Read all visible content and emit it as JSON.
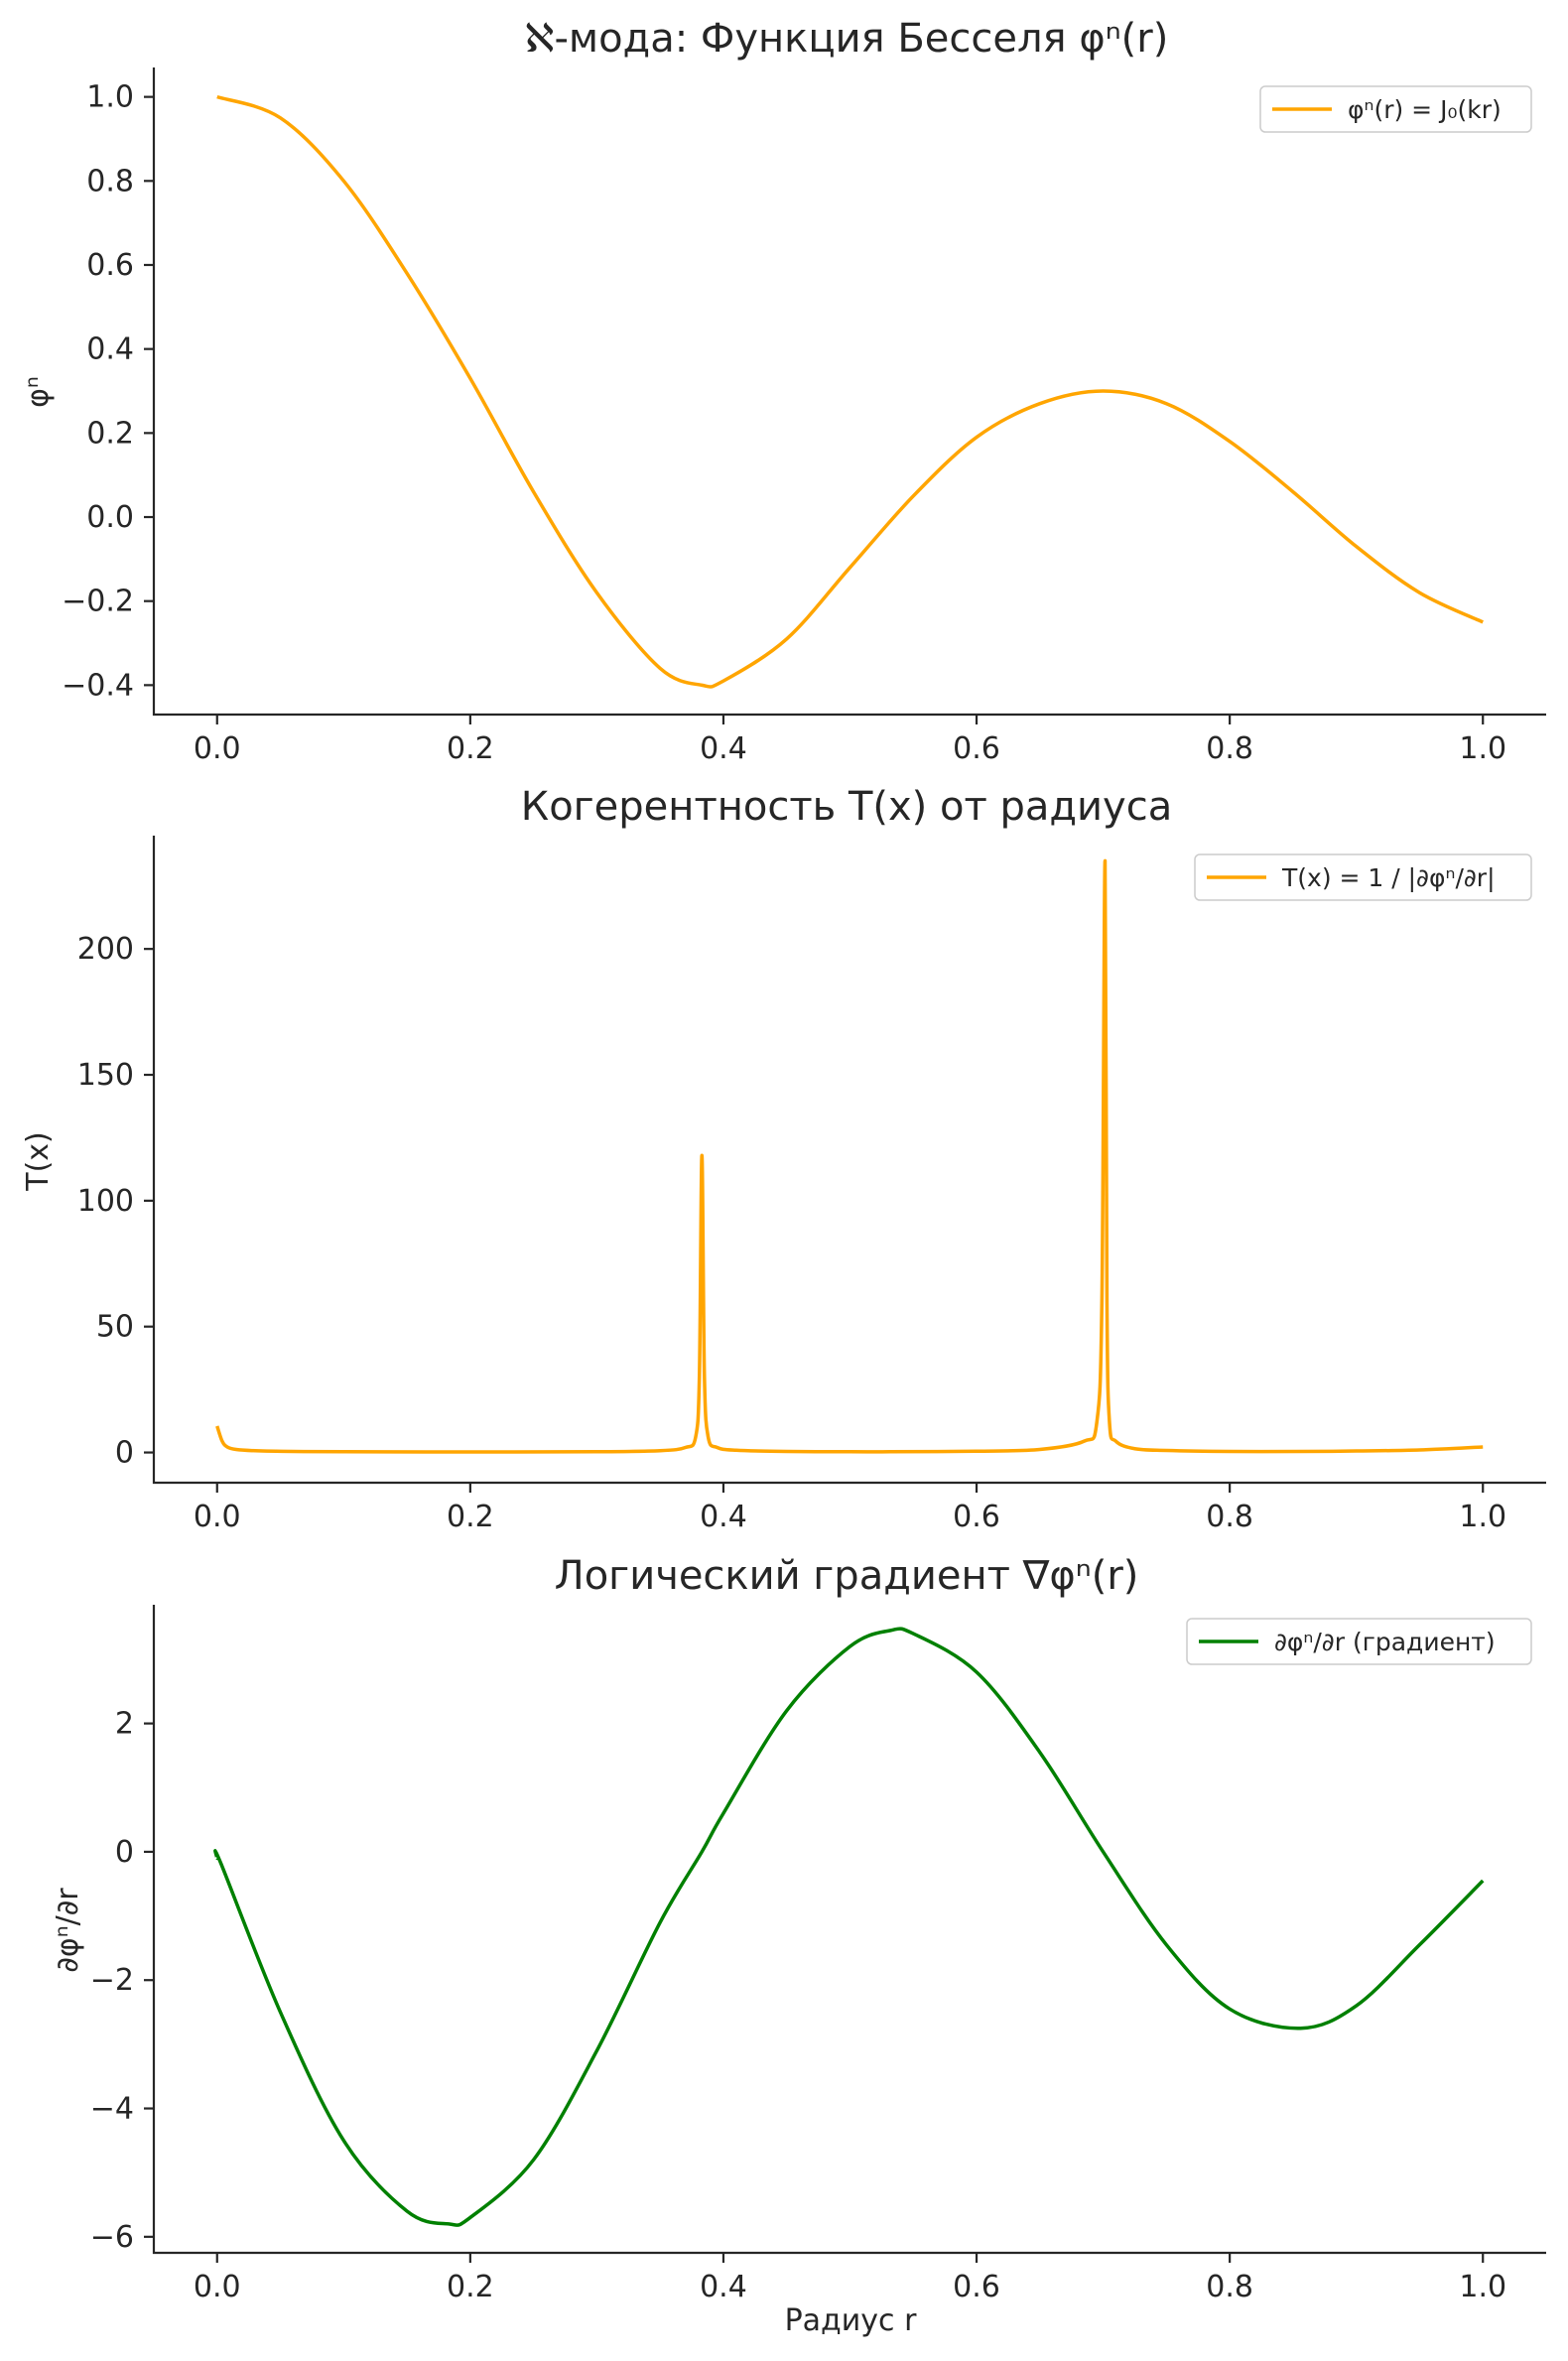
{
  "chart_data": [
    {
      "type": "line",
      "title": "ℵ-мода: Функция Бесселя φⁿ(r)",
      "xlabel": "",
      "ylabel": "φⁿ",
      "xlim": [
        -0.05,
        1.05
      ],
      "ylim": [
        -0.47,
        1.07
      ],
      "xticks": [
        0.0,
        0.2,
        0.4,
        0.6,
        0.8,
        1.0
      ],
      "xtick_labels": [
        "0.0",
        "0.2",
        "0.4",
        "0.6",
        "0.8",
        "1.0"
      ],
      "yticks": [
        1.0,
        0.8,
        0.6,
        0.4,
        0.2,
        0.0,
        -0.2,
        -0.4
      ],
      "ytick_labels": [
        "1.0",
        "0.8",
        "0.6",
        "0.4",
        "0.2",
        "0.0",
        "−0.2",
        "−0.4"
      ],
      "grid": false,
      "legend_position": "top-right",
      "series": [
        {
          "name": "φⁿ(r) = J₀(kr)",
          "color": "#FFA500",
          "x": [
            0.0,
            0.05,
            0.1,
            0.15,
            0.2,
            0.25,
            0.3,
            0.35,
            0.383,
            0.4,
            0.45,
            0.5,
            0.55,
            0.6,
            0.65,
            0.7,
            0.75,
            0.8,
            0.85,
            0.9,
            0.95,
            1.0
          ],
          "y": [
            1.0,
            0.95,
            0.8,
            0.58,
            0.33,
            0.06,
            -0.18,
            -0.36,
            -0.4,
            -0.39,
            -0.29,
            -0.12,
            0.05,
            0.19,
            0.27,
            0.3,
            0.27,
            0.18,
            0.06,
            -0.07,
            -0.18,
            -0.25
          ]
        }
      ]
    },
    {
      "type": "line",
      "title": "Когерентность T(x) от радиуса",
      "xlabel": "",
      "ylabel": "T(x)",
      "xlim": [
        -0.05,
        1.05
      ],
      "ylim": [
        -12,
        245
      ],
      "xticks": [
        0.0,
        0.2,
        0.4,
        0.6,
        0.8,
        1.0
      ],
      "xtick_labels": [
        "0.0",
        "0.2",
        "0.4",
        "0.6",
        "0.8",
        "1.0"
      ],
      "yticks": [
        200,
        150,
        100,
        50,
        0
      ],
      "ytick_labels": [
        "200",
        "150",
        "100",
        "50",
        "0"
      ],
      "grid": false,
      "legend_position": "top-right",
      "series": [
        {
          "name": "T(x) = 1 / |∂φⁿ/∂r|",
          "color": "#FFA500",
          "x": [
            0.0,
            0.004,
            0.008,
            0.015,
            0.03,
            0.06,
            0.1,
            0.2,
            0.3,
            0.35,
            0.37,
            0.378,
            0.381,
            0.383,
            0.385,
            0.388,
            0.395,
            0.41,
            0.45,
            0.5,
            0.532,
            0.6,
            0.65,
            0.685,
            0.695,
            0.699,
            0.7015,
            0.703,
            0.705,
            0.71,
            0.725,
            0.75,
            0.8,
            0.856,
            0.9,
            0.95,
            1.0
          ],
          "y": [
            10.5,
            4.5,
            2.2,
            1.2,
            0.7,
            0.4,
            0.3,
            0.2,
            0.3,
            0.7,
            2.0,
            6.0,
            30.0,
            118.0,
            30.0,
            6.0,
            2.0,
            0.9,
            0.4,
            0.3,
            0.3,
            0.5,
            1.2,
            4.5,
            12.0,
            60.0,
            235.0,
            60.0,
            12.0,
            4.5,
            1.5,
            0.8,
            0.4,
            0.4,
            0.6,
            1.0,
            2.2
          ]
        }
      ]
    },
    {
      "type": "line",
      "title": "Логический градиент ∇φⁿ(r)",
      "xlabel": "Радиус r",
      "ylabel": "∂φⁿ/∂r",
      "xlim": [
        -0.05,
        1.05
      ],
      "ylim": [
        -6.25,
        3.85
      ],
      "xticks": [
        0.0,
        0.2,
        0.4,
        0.6,
        0.8,
        1.0
      ],
      "xtick_labels": [
        "0.0",
        "0.2",
        "0.4",
        "0.6",
        "0.8",
        "1.0"
      ],
      "yticks": [
        2,
        0,
        -2,
        -4,
        -6
      ],
      "ytick_labels": [
        "2",
        "0",
        "−2",
        "−4",
        "−6"
      ],
      "grid": false,
      "legend_position": "top-right",
      "series": [
        {
          "name": "∂φⁿ/∂r (градиент)",
          "color": "#008000",
          "x": [
            0.0,
            0.003,
            0.05,
            0.1,
            0.15,
            0.183,
            0.2,
            0.25,
            0.3,
            0.35,
            0.383,
            0.4,
            0.45,
            0.5,
            0.532,
            0.55,
            0.6,
            0.65,
            0.7,
            0.75,
            0.8,
            0.856,
            0.9,
            0.95,
            1.0
          ],
          "y": [
            -0.1,
            -0.18,
            -2.5,
            -4.5,
            -5.6,
            -5.8,
            -5.7,
            -4.8,
            -3.1,
            -1.1,
            0.0,
            0.6,
            2.2,
            3.2,
            3.45,
            3.4,
            2.8,
            1.55,
            0.0,
            -1.45,
            -2.45,
            -2.75,
            -2.4,
            -1.45,
            -0.45
          ]
        }
      ]
    }
  ]
}
